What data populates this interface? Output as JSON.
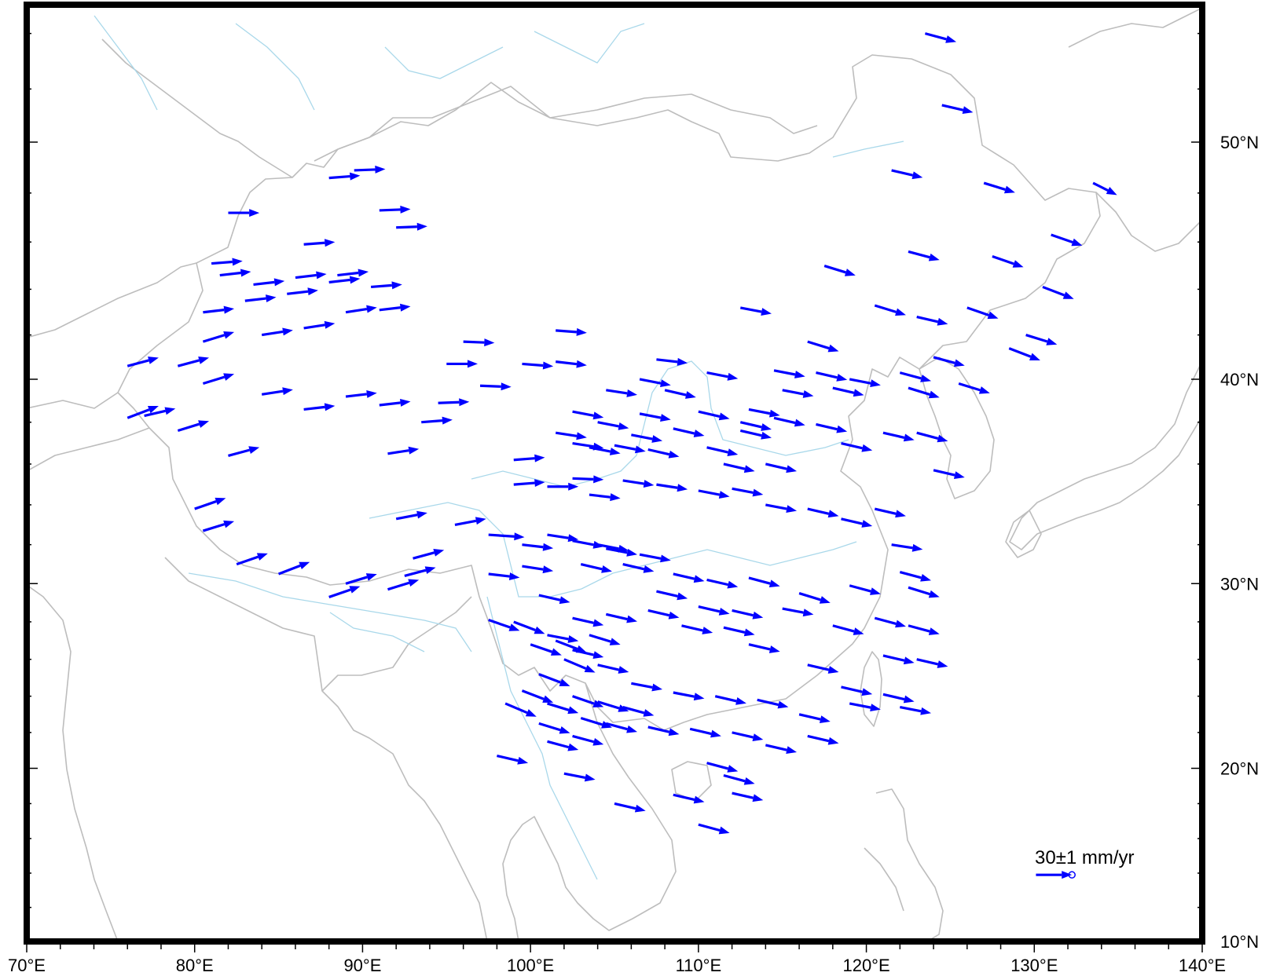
{
  "map": {
    "type": "velocity-vector-map",
    "lon_range": [
      70,
      140
    ],
    "lat_range": [
      10,
      55
    ],
    "projection": "mercator",
    "coastline_color": "#bdbdbd",
    "river_color": "#a9d8ea",
    "frame_color": "#000000",
    "vector_color": "#0000ff",
    "x_ticks": [
      {
        "lon": 70,
        "label": "70°E"
      },
      {
        "lon": 80,
        "label": "80°E"
      },
      {
        "lon": 90,
        "label": "90°E"
      },
      {
        "lon": 100,
        "label": "100°E"
      },
      {
        "lon": 110,
        "label": "110°E"
      },
      {
        "lon": 120,
        "label": "120°E"
      },
      {
        "lon": 130,
        "label": "130°E"
      },
      {
        "lon": 140,
        "label": "140°E"
      }
    ],
    "y_ticks": [
      {
        "lat": 10,
        "label": "10°N"
      },
      {
        "lat": 20,
        "label": "20°N"
      },
      {
        "lat": 30,
        "label": "30°N"
      },
      {
        "lat": 40,
        "label": "40°N"
      },
      {
        "lat": 50,
        "label": "50°N"
      }
    ]
  },
  "legend": {
    "label": "30±1 mm/yr",
    "lon": 130.1,
    "lat": 13.9,
    "east_mm_yr": 30
  },
  "chart_data": {
    "type": "vector-field",
    "units": "mm/yr",
    "scale_mm_per_deg_lon": 14,
    "vectors": [
      [
        123.5,
        54.0,
        26,
        -7
      ],
      [
        124.5,
        51.4,
        26,
        -6
      ],
      [
        127.0,
        48.4,
        26,
        -8
      ],
      [
        133.5,
        48.4,
        20,
        -10
      ],
      [
        131.0,
        46.3,
        26,
        -9
      ],
      [
        121.5,
        48.9,
        26,
        -6
      ],
      [
        122.5,
        45.6,
        26,
        -7
      ],
      [
        127.5,
        45.4,
        26,
        -9
      ],
      [
        117.5,
        45.0,
        26,
        -8
      ],
      [
        120.5,
        43.3,
        26,
        -8
      ],
      [
        126.0,
        43.2,
        26,
        -9
      ],
      [
        130.5,
        44.1,
        26,
        -10
      ],
      [
        112.5,
        43.2,
        26,
        -5
      ],
      [
        123.0,
        42.8,
        26,
        -6
      ],
      [
        129.5,
        42.0,
        26,
        -8
      ],
      [
        128.5,
        41.4,
        26,
        -10
      ],
      [
        116.5,
        41.7,
        26,
        -8
      ],
      [
        124.0,
        41.0,
        26,
        -7
      ],
      [
        122.0,
        40.3,
        26,
        -7
      ],
      [
        125.5,
        39.8,
        26,
        -8
      ],
      [
        122.5,
        39.6,
        26,
        -8
      ],
      [
        123.0,
        37.5,
        26,
        -7
      ],
      [
        121.0,
        37.5,
        26,
        -6
      ],
      [
        124.0,
        35.7,
        26,
        -6
      ],
      [
        119.0,
        40.0,
        26,
        -5
      ],
      [
        118.0,
        39.6,
        26,
        -6
      ],
      [
        117.0,
        40.3,
        26,
        -6
      ],
      [
        114.5,
        40.4,
        26,
        -5
      ],
      [
        115.0,
        39.5,
        26,
        -5
      ],
      [
        110.5,
        40.3,
        26,
        -5
      ],
      [
        107.5,
        40.9,
        26,
        -3
      ],
      [
        106.5,
        40.0,
        26,
        -5
      ],
      [
        113.0,
        38.6,
        26,
        -5
      ],
      [
        114.5,
        38.2,
        26,
        -6
      ],
      [
        117.0,
        37.9,
        26,
        -6
      ],
      [
        118.5,
        37.0,
        26,
        -6
      ],
      [
        112.5,
        37.6,
        26,
        -6
      ],
      [
        110.5,
        36.8,
        26,
        -6
      ],
      [
        108.5,
        37.7,
        26,
        -6
      ],
      [
        106.0,
        37.4,
        26,
        -5
      ],
      [
        107.0,
        36.7,
        26,
        -6
      ],
      [
        105.0,
        36.9,
        26,
        -5
      ],
      [
        103.5,
        36.8,
        26,
        -5
      ],
      [
        101.5,
        37.5,
        26,
        -4
      ],
      [
        102.5,
        37.0,
        26,
        -4
      ],
      [
        106.5,
        38.4,
        26,
        -5
      ],
      [
        104.0,
        38.0,
        26,
        -5
      ],
      [
        102.5,
        38.5,
        26,
        -5
      ],
      [
        104.5,
        39.5,
        26,
        -4
      ],
      [
        101.5,
        40.8,
        26,
        -3
      ],
      [
        101.5,
        42.2,
        26,
        -2
      ],
      [
        99.5,
        40.7,
        26,
        -2
      ],
      [
        97.0,
        39.7,
        26,
        -1
      ],
      [
        96.0,
        41.7,
        26,
        -1
      ],
      [
        95.0,
        40.7,
        26,
        0
      ],
      [
        94.5,
        38.9,
        26,
        1
      ],
      [
        93.5,
        38.0,
        26,
        2
      ],
      [
        91.5,
        36.5,
        26,
        4
      ],
      [
        92.0,
        33.3,
        26,
        5
      ],
      [
        95.5,
        33.0,
        26,
        5
      ],
      [
        97.5,
        32.5,
        30,
        -2
      ],
      [
        97.5,
        30.5,
        26,
        -3
      ],
      [
        99.5,
        30.9,
        26,
        -4
      ],
      [
        99.5,
        32.0,
        26,
        -3
      ],
      [
        99.0,
        36.2,
        26,
        2
      ],
      [
        99.0,
        35.0,
        26,
        2
      ],
      [
        101.0,
        34.9,
        26,
        0
      ],
      [
        102.5,
        35.3,
        26,
        -1
      ],
      [
        103.5,
        34.5,
        26,
        -3
      ],
      [
        105.5,
        35.2,
        26,
        -4
      ],
      [
        107.5,
        35.0,
        26,
        -4
      ],
      [
        110.0,
        34.7,
        26,
        -5
      ],
      [
        112.0,
        34.8,
        26,
        -5
      ],
      [
        114.0,
        34.0,
        26,
        -5
      ],
      [
        116.5,
        33.8,
        26,
        -6
      ],
      [
        118.5,
        33.3,
        26,
        -6
      ],
      [
        120.5,
        33.8,
        26,
        -6
      ],
      [
        121.5,
        32.0,
        26,
        -4
      ],
      [
        122.0,
        30.6,
        26,
        -7
      ],
      [
        122.5,
        29.8,
        26,
        -8
      ],
      [
        119.0,
        29.9,
        26,
        -7
      ],
      [
        116.0,
        29.5,
        26,
        -8
      ],
      [
        113.0,
        30.3,
        26,
        -7
      ],
      [
        110.5,
        30.2,
        26,
        -6
      ],
      [
        108.5,
        30.5,
        26,
        -6
      ],
      [
        106.5,
        31.5,
        26,
        -5
      ],
      [
        104.5,
        31.8,
        26,
        -5
      ],
      [
        102.5,
        32.2,
        26,
        -5
      ],
      [
        101.0,
        32.5,
        26,
        -4
      ],
      [
        104.0,
        32.0,
        26,
        -5
      ],
      [
        103.0,
        31.0,
        26,
        -6
      ],
      [
        105.5,
        31.0,
        26,
        -6
      ],
      [
        107.5,
        29.6,
        26,
        -6
      ],
      [
        110.0,
        28.8,
        26,
        -6
      ],
      [
        112.0,
        28.6,
        26,
        -6
      ],
      [
        115.0,
        28.7,
        26,
        -5
      ],
      [
        118.0,
        27.8,
        26,
        -7
      ],
      [
        120.5,
        28.2,
        26,
        -7
      ],
      [
        122.5,
        27.8,
        26,
        -7
      ],
      [
        121.0,
        26.2,
        26,
        -6
      ],
      [
        123.0,
        26.0,
        26,
        -6
      ],
      [
        118.5,
        24.5,
        26,
        -6
      ],
      [
        121.0,
        24.1,
        26,
        -6
      ],
      [
        116.0,
        23.0,
        26,
        -6
      ],
      [
        113.5,
        23.8,
        26,
        -6
      ],
      [
        111.0,
        24.0,
        26,
        -6
      ],
      [
        108.5,
        24.2,
        26,
        -5
      ],
      [
        106.0,
        24.7,
        26,
        -5
      ],
      [
        104.0,
        25.7,
        26,
        -6
      ],
      [
        102.5,
        26.5,
        26,
        -6
      ],
      [
        101.0,
        27.3,
        26,
        -5
      ],
      [
        102.5,
        28.2,
        26,
        -6
      ],
      [
        104.5,
        28.4,
        26,
        -6
      ],
      [
        107.0,
        28.6,
        26,
        -6
      ],
      [
        109.0,
        27.8,
        26,
        -6
      ],
      [
        111.5,
        27.7,
        26,
        -6
      ],
      [
        113.0,
        26.8,
        26,
        -6
      ],
      [
        116.5,
        25.7,
        26,
        -6
      ],
      [
        119.0,
        23.6,
        26,
        -5
      ],
      [
        122.0,
        23.4,
        26,
        -5
      ],
      [
        100.0,
        26.8,
        26,
        -9
      ],
      [
        101.5,
        27.0,
        26,
        -10
      ],
      [
        102.0,
        26.0,
        26,
        -11
      ],
      [
        103.5,
        27.3,
        26,
        -8
      ],
      [
        100.5,
        25.2,
        26,
        -10
      ],
      [
        99.5,
        24.3,
        26,
        -10
      ],
      [
        98.5,
        23.6,
        26,
        -11
      ],
      [
        101.0,
        23.6,
        26,
        -8
      ],
      [
        102.5,
        24.0,
        26,
        -9
      ],
      [
        104.0,
        23.7,
        26,
        -8
      ],
      [
        105.5,
        23.4,
        26,
        -7
      ],
      [
        103.0,
        22.8,
        26,
        -8
      ],
      [
        100.5,
        22.5,
        26,
        -8
      ],
      [
        101.0,
        21.5,
        26,
        -7
      ],
      [
        102.5,
        21.8,
        26,
        -7
      ],
      [
        104.5,
        22.5,
        26,
        -7
      ],
      [
        107.0,
        22.3,
        26,
        -6
      ],
      [
        109.5,
        22.2,
        26,
        -6
      ],
      [
        112.0,
        22.0,
        26,
        -6
      ],
      [
        114.0,
        21.3,
        26,
        -6
      ],
      [
        116.5,
        21.8,
        26,
        -6
      ],
      [
        110.5,
        20.3,
        26,
        -7
      ],
      [
        111.5,
        19.6,
        26,
        -7
      ],
      [
        112.0,
        18.6,
        26,
        -6
      ],
      [
        108.5,
        18.5,
        26,
        -6
      ],
      [
        102.0,
        19.7,
        26,
        -5
      ],
      [
        98.0,
        20.7,
        26,
        -6
      ],
      [
        105.0,
        18.0,
        26,
        -6
      ],
      [
        110.0,
        16.8,
        26,
        -7
      ],
      [
        97.5,
        28.1,
        26,
        -9
      ],
      [
        99.0,
        28.0,
        26,
        -10
      ],
      [
        100.5,
        29.4,
        26,
        -6
      ],
      [
        88.0,
        29.3,
        26,
        9
      ],
      [
        89.0,
        30.0,
        26,
        8
      ],
      [
        91.5,
        29.7,
        26,
        8
      ],
      [
        92.5,
        30.4,
        26,
        7
      ],
      [
        93.0,
        31.3,
        26,
        7
      ],
      [
        85.0,
        30.5,
        26,
        10
      ],
      [
        82.5,
        31.0,
        26,
        9
      ],
      [
        80.5,
        32.7,
        26,
        8
      ],
      [
        80.0,
        33.8,
        26,
        9
      ],
      [
        82.0,
        36.4,
        26,
        7
      ],
      [
        79.0,
        37.6,
        26,
        8
      ],
      [
        76.0,
        38.2,
        26,
        10
      ],
      [
        77.0,
        38.3,
        26,
        6
      ],
      [
        80.5,
        39.8,
        26,
        8
      ],
      [
        79.0,
        40.6,
        26,
        7
      ],
      [
        80.5,
        41.7,
        26,
        8
      ],
      [
        76.0,
        40.6,
        26,
        7
      ],
      [
        84.0,
        39.3,
        26,
        4
      ],
      [
        86.5,
        38.6,
        26,
        3
      ],
      [
        89.0,
        39.2,
        26,
        3
      ],
      [
        91.0,
        38.8,
        26,
        3
      ],
      [
        84.0,
        42.0,
        26,
        4
      ],
      [
        86.5,
        42.3,
        26,
        4
      ],
      [
        89.0,
        43.0,
        26,
        4
      ],
      [
        91.0,
        43.1,
        26,
        3
      ],
      [
        80.5,
        43.0,
        26,
        3
      ],
      [
        83.0,
        43.5,
        26,
        3
      ],
      [
        85.5,
        43.8,
        26,
        3
      ],
      [
        88.0,
        44.3,
        26,
        3
      ],
      [
        90.5,
        44.1,
        26,
        2
      ],
      [
        81.5,
        44.6,
        26,
        3
      ],
      [
        83.5,
        44.2,
        26,
        3
      ],
      [
        86.0,
        44.5,
        26,
        3
      ],
      [
        88.5,
        44.6,
        26,
        3
      ],
      [
        86.5,
        45.9,
        26,
        2
      ],
      [
        91.0,
        47.3,
        26,
        1
      ],
      [
        92.0,
        46.6,
        26,
        1
      ],
      [
        82.0,
        47.2,
        26,
        0
      ],
      [
        81.0,
        45.1,
        26,
        2
      ],
      [
        88.0,
        48.6,
        26,
        2
      ],
      [
        89.5,
        48.9,
        26,
        1
      ],
      [
        112.5,
        38.0,
        26,
        -6
      ],
      [
        114.0,
        36.0,
        26,
        -6
      ],
      [
        111.5,
        36.0,
        26,
        -6
      ],
      [
        110.0,
        38.5,
        26,
        -6
      ],
      [
        108.0,
        39.5,
        26,
        -6
      ]
    ]
  }
}
